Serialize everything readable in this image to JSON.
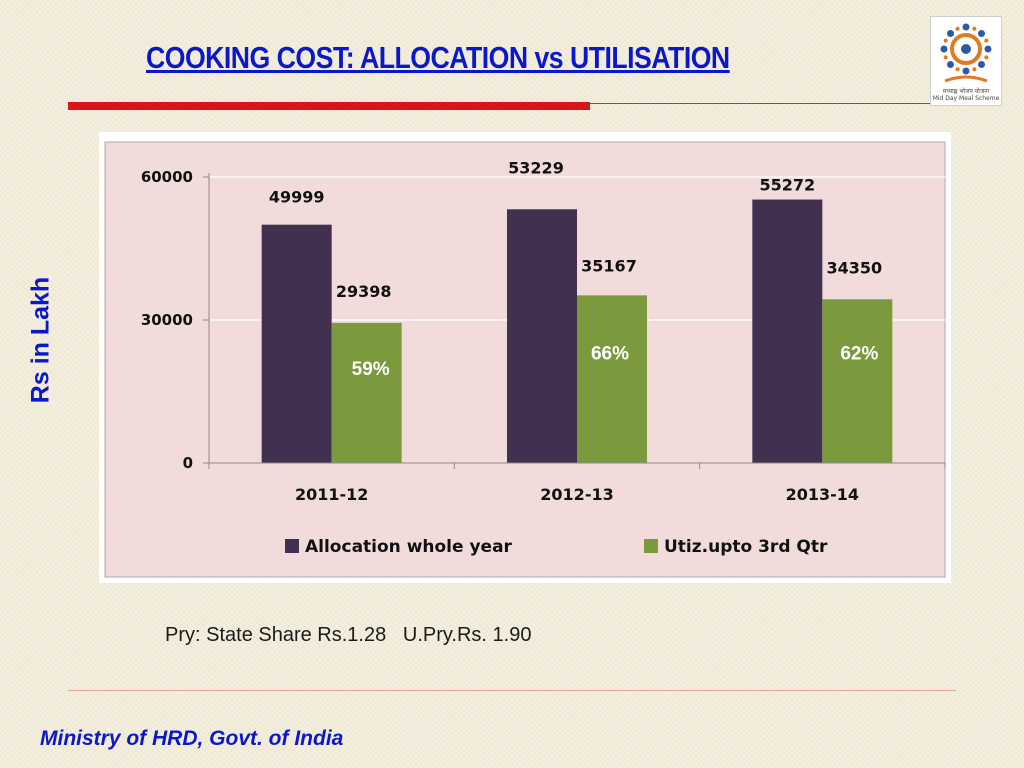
{
  "slide": {
    "title": "COOKING COST: ALLOCATION vs UTILISATION",
    "side_label": "Rs in Lakh",
    "note": "Pry: State Share Rs.1.28   U.Pry.Rs. 1.90",
    "footer": "Ministry of HRD, Govt. of India",
    "logo": {
      "icon": "mid-day-meal-scheme-logo",
      "text": "Mid Day Meal Scheme"
    }
  },
  "chart_data": {
    "type": "bar",
    "categories": [
      "2011-12",
      "2012-13",
      "2013-14"
    ],
    "series": [
      {
        "name": "Allocation whole year",
        "values": [
          49999,
          53229,
          55272
        ],
        "color": "#41304f"
      },
      {
        "name": "Utiz.upto 3rd Qtr",
        "values": [
          29398,
          35167,
          34350
        ],
        "color": "#7a9a3d",
        "percent_labels": [
          "59%",
          "66%",
          "62%"
        ]
      }
    ],
    "ylim": [
      0,
      60000
    ],
    "yticks": [
      0,
      30000,
      60000
    ],
    "grid": true,
    "legend": "bottom",
    "plot_background": "#f2dcdb"
  }
}
